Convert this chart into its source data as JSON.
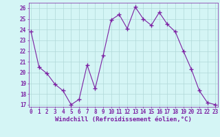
{
  "x": [
    0,
    1,
    2,
    3,
    4,
    5,
    6,
    7,
    8,
    9,
    10,
    11,
    12,
    13,
    14,
    15,
    16,
    17,
    18,
    19,
    20,
    21,
    22,
    23
  ],
  "y": [
    23.8,
    20.5,
    19.9,
    18.9,
    18.3,
    17.0,
    17.5,
    20.7,
    18.5,
    21.6,
    24.9,
    25.4,
    24.1,
    26.1,
    25.0,
    24.4,
    25.6,
    24.5,
    23.8,
    22.0,
    20.3,
    18.3,
    17.2,
    17.0
  ],
  "line_color": "#7b1fa2",
  "marker": "+",
  "marker_color": "#7b1fa2",
  "bg_color": "#d4f5f5",
  "grid_color": "#b0d8d8",
  "xlabel": "Windchill (Refroidissement éolien,°C)",
  "ylim_min": 16.8,
  "ylim_max": 26.5,
  "yticks": [
    17,
    18,
    19,
    20,
    21,
    22,
    23,
    24,
    25,
    26
  ],
  "xticks": [
    0,
    1,
    2,
    3,
    4,
    5,
    6,
    7,
    8,
    9,
    10,
    11,
    12,
    13,
    14,
    15,
    16,
    17,
    18,
    19,
    20,
    21,
    22,
    23
  ],
  "tick_color": "#7b1fa2",
  "label_color": "#7b1fa2",
  "border_color": "#7b1fa2",
  "font_size_xlabel": 6.5,
  "font_size_ticks": 5.5,
  "linewidth": 0.8,
  "markersize": 4.0
}
